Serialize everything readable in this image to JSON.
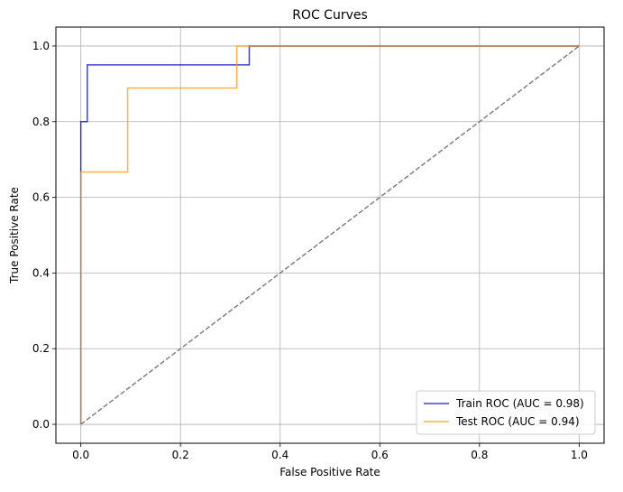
{
  "chart_data": {
    "type": "line",
    "title": "ROC Curves",
    "xlabel": "False Positive Rate",
    "ylabel": "True Positive Rate",
    "xlim": [
      -0.05,
      1.05
    ],
    "ylim": [
      -0.05,
      1.05
    ],
    "xticks": [
      0.0,
      0.2,
      0.4,
      0.6,
      0.8,
      1.0
    ],
    "yticks": [
      0.0,
      0.2,
      0.4,
      0.6,
      0.8,
      1.0
    ],
    "xtick_labels": [
      "0.0",
      "0.2",
      "0.4",
      "0.6",
      "0.8",
      "1.0"
    ],
    "ytick_labels": [
      "0.0",
      "0.2",
      "0.4",
      "0.6",
      "0.8",
      "1.0"
    ],
    "grid": true,
    "legend_position": "lower-right",
    "series": [
      {
        "name": "Train ROC (AUC = 0.98)",
        "color": "#0000cc",
        "style": "step",
        "points": [
          [
            0.0,
            0.0
          ],
          [
            0.0,
            0.8
          ],
          [
            0.013,
            0.8
          ],
          [
            0.013,
            0.95
          ],
          [
            0.338,
            0.95
          ],
          [
            0.338,
            1.0
          ],
          [
            1.0,
            1.0
          ]
        ]
      },
      {
        "name": "Test ROC (AUC = 0.94)",
        "color": "#ff9900",
        "style": "step",
        "points": [
          [
            0.0,
            0.0
          ],
          [
            0.0,
            0.667
          ],
          [
            0.094,
            0.667
          ],
          [
            0.094,
            0.889
          ],
          [
            0.313,
            0.889
          ],
          [
            0.313,
            1.0
          ],
          [
            1.0,
            1.0
          ]
        ]
      },
      {
        "name": "",
        "color": "#808080",
        "style": "dashed",
        "points": [
          [
            0.0,
            0.0
          ],
          [
            1.0,
            1.0
          ]
        ]
      }
    ]
  }
}
